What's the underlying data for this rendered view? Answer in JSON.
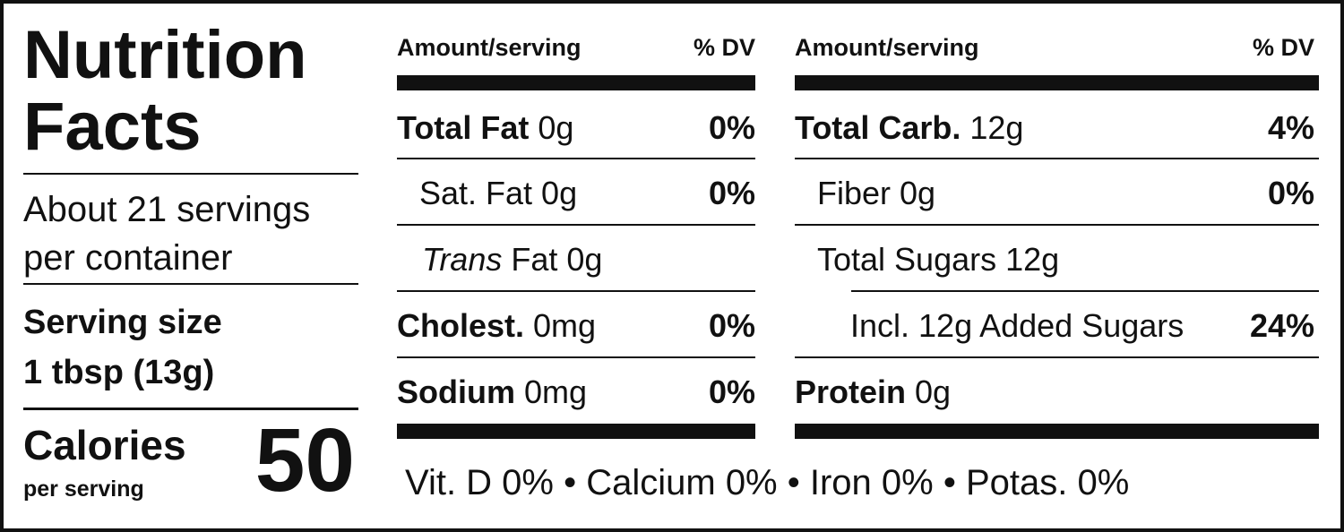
{
  "left": {
    "title": [
      "Nutrition",
      "Facts"
    ],
    "servings": [
      "About 21 servings",
      "per container"
    ],
    "serving_size": {
      "label": "Serving size",
      "value": "1 tbsp (13g)"
    },
    "calories": {
      "label": "Calories",
      "sublabel": "per serving",
      "value": 50
    }
  },
  "middle": {
    "header": {
      "amount": "Amount/serving",
      "dv": "% DV"
    },
    "rows": [
      {
        "bold": "Total Fat",
        "amount": "0g",
        "dv": "0%"
      },
      {
        "amount": "Sat. Fat 0g",
        "dv": "0%"
      },
      {
        "italic": "Trans",
        "amount": "Fat 0g"
      },
      {
        "bold": "Cholest.",
        "amount": "0mg",
        "dv": "0%"
      },
      {
        "bold": "Sodium",
        "amount": "0mg",
        "dv": "0%"
      }
    ]
  },
  "right": {
    "header": {
      "amount": "Amount/serving",
      "dv": "% DV"
    },
    "rows": [
      {
        "bold": "Total Carb.",
        "amount": "12g",
        "dv": "4%"
      },
      {
        "amount": "Fiber 0g",
        "dv": "0%"
      },
      {
        "amount": "Total Sugars 12g"
      },
      {
        "amount": "Incl. 12g Added Sugars",
        "dv": "24%"
      },
      {
        "bold": "Protein",
        "amount": "0g"
      }
    ]
  },
  "footer": "Vit. D 0% • Calcium 0% • Iron 0% • Potas. 0%"
}
